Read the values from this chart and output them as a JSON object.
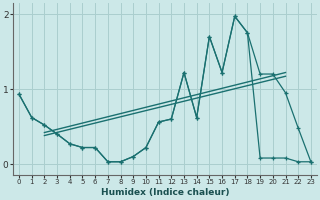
{
  "title": "",
  "xlabel": "Humidex (Indice chaleur)",
  "background_color": "#cce8e8",
  "line_color": "#1a7070",
  "grid_color": "#aacece",
  "x_values": [
    0,
    1,
    2,
    3,
    4,
    5,
    6,
    7,
    8,
    9,
    10,
    11,
    12,
    13,
    14,
    15,
    16,
    17,
    18,
    19,
    20,
    21,
    22,
    23
  ],
  "main_series": [
    0.93,
    0.62,
    0.52,
    0.4,
    0.27,
    0.22,
    0.22,
    0.03,
    0.03,
    0.1,
    0.22,
    0.56,
    0.6,
    1.22,
    0.62,
    1.7,
    1.22,
    1.97,
    1.75,
    0.08,
    0.08,
    0.08,
    0.03,
    0.03
  ],
  "smooth_series": [
    0.93,
    0.62,
    0.52,
    0.4,
    0.27,
    0.22,
    0.22,
    0.03,
    0.03,
    0.1,
    0.22,
    0.56,
    0.6,
    1.22,
    0.62,
    1.7,
    1.22,
    1.97,
    1.75,
    1.2,
    1.2,
    0.95,
    0.48,
    0.03
  ],
  "trend1_x": [
    2,
    21
  ],
  "trend1_y": [
    0.42,
    1.22
  ],
  "trend2_x": [
    2,
    21
  ],
  "trend2_y": [
    0.38,
    1.17
  ],
  "xlim": [
    -0.5,
    23.5
  ],
  "ylim": [
    -0.15,
    2.15
  ],
  "yticks": [
    0,
    1,
    2
  ],
  "xticks": [
    0,
    1,
    2,
    3,
    4,
    5,
    6,
    7,
    8,
    9,
    10,
    11,
    12,
    13,
    14,
    15,
    16,
    17,
    18,
    19,
    20,
    21,
    22,
    23
  ]
}
